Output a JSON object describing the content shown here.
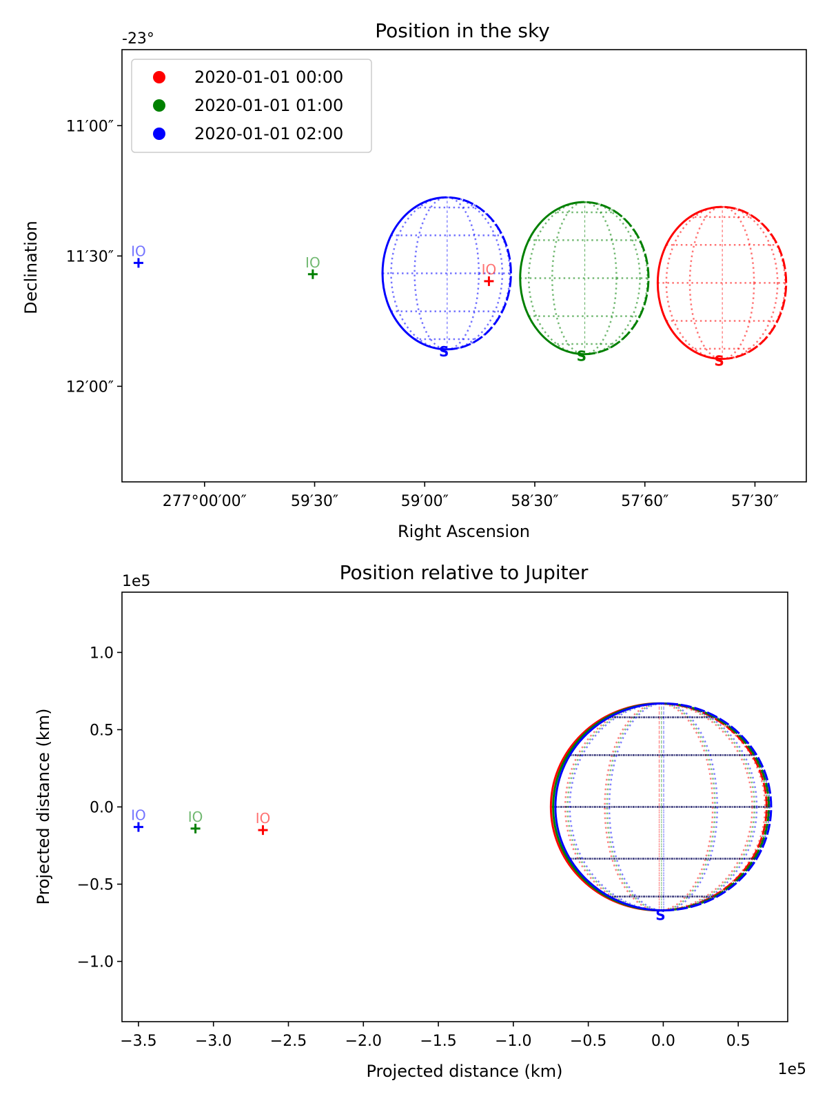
{
  "chart_data": [
    {
      "type": "scatter",
      "title": "Position in the sky",
      "xlabel": "Right Ascension",
      "ylabel": "Declination",
      "corner_label": "-23°",
      "x_ticks": [
        {
          "label": "277°00′00″",
          "value": 0
        },
        {
          "label": "59′30″",
          "value": 30
        },
        {
          "label": "59′00″",
          "value": 60
        },
        {
          "label": "58′30″",
          "value": 90
        },
        {
          "label": "57′60″",
          "value": 120
        },
        {
          "label": "57′30″",
          "value": 150
        }
      ],
      "x_note": "x value = arcseconds below RA 277°00′00″ (axis increases to the left-to-right as RA decreases)",
      "y_ticks": [
        {
          "label": "11′00″",
          "value": 660
        },
        {
          "label": "11′30″",
          "value": 690
        },
        {
          "label": "12′00″",
          "value": 720
        }
      ],
      "xlim": [
        -22.5,
        164
      ],
      "ylim": [
        742,
        642.5
      ],
      "legend": {
        "placement": "upper-left",
        "entries": [
          {
            "label": "2020-01-01 00:00",
            "color": "#ff0000"
          },
          {
            "label": "2020-01-01 01:00",
            "color": "#008000"
          },
          {
            "label": "2020-01-01 02:00",
            "color": "#0000ff"
          }
        ]
      },
      "moon_points": [
        {
          "label": "IO",
          "color": "#ff0000",
          "x": 77.5,
          "y": 695.8
        },
        {
          "label": "IO",
          "color": "#008000",
          "x": 29.5,
          "y": 694.2
        },
        {
          "label": "IO",
          "color": "#0000ff",
          "x": -18,
          "y": 691.6
        }
      ],
      "planets": [
        {
          "color": "#ff0000",
          "cx": 141,
          "cy": 696.2,
          "r": 17.5,
          "south_label": "S"
        },
        {
          "color": "#008000",
          "cx": 103.5,
          "cy": 695.1,
          "r": 17.5,
          "south_label": "S"
        },
        {
          "color": "#0000ff",
          "cx": 66,
          "cy": 694.0,
          "r": 17.5,
          "south_label": "S"
        }
      ]
    },
    {
      "type": "scatter",
      "title": "Position relative to Jupiter",
      "xlabel": "Projected distance (km)",
      "ylabel": "Projected distance (km)",
      "x_offset_label": "1e5",
      "y_offset_label": "1e5",
      "x_ticks": [
        -3.5,
        -3.0,
        -2.5,
        -2.0,
        -1.5,
        -1.0,
        -0.5,
        0.0,
        0.5
      ],
      "x_tick_labels": [
        "−3.5",
        "−3.0",
        "−2.5",
        "−2.0",
        "−1.5",
        "−1.0",
        "−0.5",
        "0.0",
        "0.5"
      ],
      "y_ticks": [
        1.0,
        0.5,
        0.0,
        -0.5,
        -1.0
      ],
      "y_tick_labels": [
        "1.0",
        "0.5",
        "0.0",
        "−0.5",
        "−1.0"
      ],
      "xlim": [
        -3.61,
        0.83
      ],
      "ylim": [
        -1.39,
        1.39
      ],
      "moon_points": [
        {
          "label": "IO",
          "color": "#ff0000",
          "x": -2.67,
          "y": -0.15
        },
        {
          "label": "IO",
          "color": "#008000",
          "x": -3.12,
          "y": -0.14
        },
        {
          "label": "IO",
          "color": "#0000ff",
          "x": -3.5,
          "y": -0.13
        }
      ],
      "planet": {
        "cx": 0.0,
        "cy": 0.0,
        "rx": 0.72,
        "ry": 0.67,
        "south_label": "S"
      },
      "meridian_colors": [
        "#ff0000",
        "#008000",
        "#0000ff"
      ]
    }
  ]
}
